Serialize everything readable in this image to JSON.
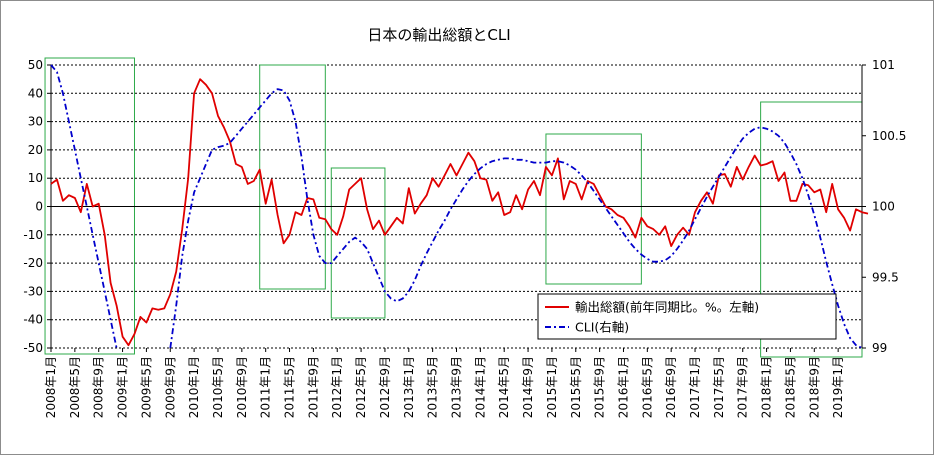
{
  "chart_data": {
    "type": "line",
    "title": "日本の輸出総額とCLI",
    "left_axis": {
      "ylim": [
        -50,
        50
      ],
      "ticks": [
        "50",
        "40",
        "30",
        "20",
        "10",
        "0",
        "-10",
        "-20",
        "-30",
        "-40",
        "-50"
      ]
    },
    "right_axis": {
      "ylim": [
        99,
        101
      ],
      "ticks": [
        "101",
        "100.5",
        "100",
        "99.5",
        "99"
      ]
    },
    "x_range": [
      "2008-01",
      "2019-05"
    ],
    "x_tick_labels": [
      "2008年1月",
      "2008年5月",
      "2008年9月",
      "2009年1月",
      "2009年5月",
      "2009年9月",
      "2010年1月",
      "2010年5月",
      "2010年9月",
      "2011年1月",
      "2011年5月",
      "2011年9月",
      "2012年1月",
      "2012年5月",
      "2012年9月",
      "2013年1月",
      "2013年5月",
      "2013年9月",
      "2014年1月",
      "2014年5月",
      "2014年9月",
      "2015年1月",
      "2015年5月",
      "2015年9月",
      "2016年1月",
      "2016年5月",
      "2016年9月",
      "2017年1月",
      "2017年5月",
      "2017年9月",
      "2018年1月",
      "2018年5月",
      "2018年9月",
      "2019年1月"
    ],
    "grid": "horizontal dashed",
    "legend_placement": "bottom-right",
    "series": [
      {
        "name": "輸出総額(前年同期比。%。左軸)",
        "axis": "left",
        "color": "#e00000",
        "style": "solid",
        "values": [
          8,
          9.5,
          2,
          4,
          3,
          -2,
          8,
          0,
          1,
          -10,
          -27,
          -35,
          -46,
          -49,
          -45,
          -39,
          -41,
          -36,
          -36.5,
          -36,
          -31,
          -23,
          -8,
          10,
          40,
          45,
          43,
          40,
          32,
          28,
          23,
          15,
          14,
          8,
          9,
          13,
          1,
          9.5,
          -3,
          -13,
          -10,
          -2,
          -3,
          3,
          2.5,
          -4,
          -4.5,
          -8,
          -10,
          -3.5,
          6,
          8,
          10,
          -1,
          -8,
          -5,
          -10,
          -7,
          -4,
          -6,
          6.5,
          -2.5,
          1,
          4,
          10,
          7,
          11,
          15,
          11,
          15,
          19,
          16,
          10,
          9.5,
          2,
          5,
          -3,
          -2,
          4,
          -1,
          6,
          9,
          4,
          14,
          11,
          17,
          2.5,
          9,
          8,
          2.5,
          9,
          8,
          4,
          0,
          -1,
          -3,
          -4,
          -7,
          -11,
          -4,
          -7,
          -8,
          -10,
          -7,
          -14,
          -10,
          -7.5,
          -10,
          -2,
          2,
          5,
          1,
          11,
          11.5,
          7,
          14,
          9.5,
          14,
          18,
          14.5,
          15,
          16,
          9,
          12,
          2,
          2,
          8,
          7.5,
          5,
          6,
          -2,
          8,
          -1,
          -4,
          -8.5,
          -1,
          -2,
          -2.5
        ]
      },
      {
        "name": "CLI(右軸)",
        "axis": "right",
        "color": "#0000cc",
        "style": "dash-dot",
        "values": [
          101,
          100.95,
          100.8,
          100.6,
          100.4,
          100.2,
          100,
          99.8,
          99.6,
          99.4,
          99.2,
          99,
          null,
          null,
          null,
          null,
          null,
          null,
          null,
          null,
          99,
          99.3,
          99.65,
          99.9,
          100.1,
          100.2,
          100.3,
          100.4,
          100.42,
          100.43,
          100.45,
          100.5,
          100.55,
          100.6,
          100.65,
          100.7,
          100.75,
          100.8,
          100.83,
          100.82,
          100.75,
          100.6,
          100.35,
          100.05,
          99.8,
          99.65,
          99.6,
          99.6,
          99.65,
          99.7,
          99.75,
          99.78,
          99.75,
          99.7,
          99.6,
          99.5,
          99.4,
          99.35,
          99.33,
          99.35,
          99.4,
          99.48,
          99.58,
          99.67,
          99.75,
          99.83,
          99.9,
          99.98,
          100.05,
          100.12,
          100.18,
          100.23,
          100.27,
          100.3,
          100.32,
          100.33,
          100.34,
          100.34,
          100.33,
          100.33,
          100.32,
          100.31,
          100.31,
          100.31,
          100.32,
          100.32,
          100.31,
          100.29,
          100.26,
          100.22,
          100.17,
          100.11,
          100.05,
          99.99,
          99.93,
          99.87,
          99.81,
          99.75,
          99.7,
          99.66,
          99.63,
          99.61,
          99.61,
          99.62,
          99.65,
          99.7,
          99.76,
          99.83,
          99.91,
          99.99,
          100.07,
          100.14,
          100.21,
          100.28,
          100.35,
          100.42,
          100.48,
          100.52,
          100.55,
          100.56,
          100.55,
          100.53,
          100.5,
          100.45,
          100.38,
          100.3,
          100.2,
          100.08,
          99.94,
          99.78,
          99.61,
          99.45,
          99.3,
          99.17,
          99.07,
          99.02,
          99
        ]
      }
    ],
    "annotations": [
      "highlight box 2007-12..2009-03",
      "highlight box 2010-12..2011-11",
      "highlight box 2011-12..2012-09",
      "highlight box 2014-12..2016-04",
      "highlight box 2017-12..2019-05"
    ]
  }
}
